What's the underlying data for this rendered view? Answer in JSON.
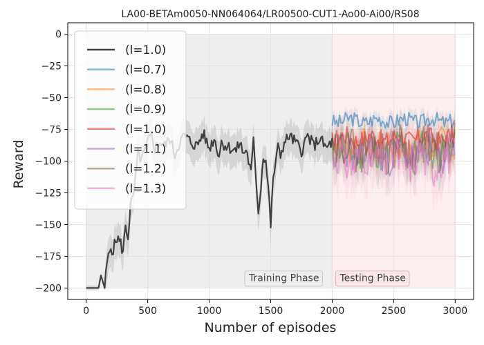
{
  "chart_data": {
    "type": "line",
    "title": "LA00-BETAm0050-NN064064/LR00500-CUT1-Ao00-Ai00/RS08",
    "xlabel": "Number of episodes",
    "ylabel": "Reward",
    "xlim": [
      -150,
      3150
    ],
    "ylim": [
      -209,
      9
    ],
    "xticks": [
      0,
      500,
      1000,
      1500,
      2000,
      2500,
      3000
    ],
    "yticks": [
      0,
      -25,
      -50,
      -75,
      -100,
      -125,
      -150,
      -175,
      -200
    ],
    "grid": true,
    "legend_position": "top-left",
    "phases": [
      {
        "label": "Training Phase",
        "x_range": [
          0,
          2000
        ],
        "color": "#d9d9d9"
      },
      {
        "label": "Testing Phase",
        "x_range": [
          2000,
          3000
        ],
        "color": "#f7d5d5"
      }
    ],
    "training_series": {
      "name": "(l=1.0)",
      "color": "#404040",
      "x": [
        0,
        50,
        100,
        120,
        150,
        170,
        200,
        220,
        250,
        280,
        300,
        320,
        340,
        360,
        380,
        400,
        420,
        450,
        480,
        500,
        530,
        560,
        600,
        640,
        680,
        720,
        760,
        800,
        850,
        900,
        950,
        1000,
        1040,
        1080,
        1100,
        1140,
        1180,
        1220,
        1250,
        1280,
        1300,
        1320,
        1340,
        1360,
        1380,
        1400,
        1420,
        1440,
        1460,
        1480,
        1500,
        1520,
        1540,
        1560,
        1580,
        1600,
        1650,
        1700,
        1750,
        1800,
        1850,
        1900,
        1950,
        2000
      ],
      "values": [
        -200,
        -200,
        -200,
        -190,
        -200,
        -180,
        -168,
        -170,
        -160,
        -165,
        -172,
        -150,
        -160,
        -135,
        -130,
        -115,
        -95,
        -98,
        -92,
        -85,
        -80,
        -90,
        -85,
        -88,
        -82,
        -95,
        -85,
        -80,
        -85,
        -88,
        -78,
        -90,
        -82,
        -95,
        -85,
        -88,
        -90,
        -92,
        -85,
        -95,
        -90,
        -100,
        -110,
        -85,
        -112,
        -140,
        -120,
        -95,
        -100,
        -120,
        -150,
        -115,
        -100,
        -90,
        -95,
        -88,
        -80,
        -85,
        -92,
        -80,
        -88,
        -82,
        -90,
        -85
      ]
    },
    "test_x_start": 2000,
    "test_x_end": 3000,
    "test_series": [
      {
        "name": "(l=0.7)",
        "color": "#1f77b4",
        "mean": -68,
        "amp": 6,
        "seed": 3
      },
      {
        "name": "(l=0.8)",
        "color": "#ff7f0e",
        "mean": -88,
        "amp": 12,
        "seed": 7
      },
      {
        "name": "(l=0.9)",
        "color": "#2ca02c",
        "mean": -92,
        "amp": 14,
        "seed": 11
      },
      {
        "name": "(l=1.0)",
        "color": "#d62728",
        "mean": -82,
        "amp": 8,
        "seed": 17
      },
      {
        "name": "(l=1.1)",
        "color": "#9467bd",
        "mean": -95,
        "amp": 14,
        "seed": 23
      },
      {
        "name": "(l=1.2)",
        "color": "#8c564b",
        "mean": -90,
        "amp": 16,
        "seed": 29
      },
      {
        "name": "(l=1.3)",
        "color": "#e377c2",
        "mean": -98,
        "amp": 18,
        "seed": 31
      }
    ]
  }
}
